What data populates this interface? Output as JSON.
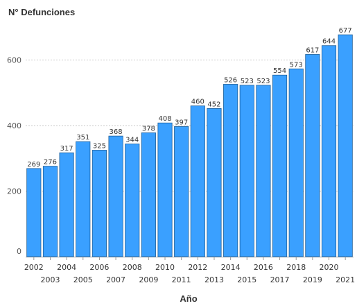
{
  "chart_data": {
    "type": "bar",
    "title": "N° Defunciones",
    "xlabel": "Año",
    "ylabel": "",
    "categories": [
      "2002",
      "2003",
      "2004",
      "2005",
      "2006",
      "2007",
      "2008",
      "2009",
      "2010",
      "2011",
      "2012",
      "2013",
      "2014",
      "2015",
      "2016",
      "2017",
      "2018",
      "2019",
      "2020",
      "2021"
    ],
    "values": [
      269,
      276,
      317,
      351,
      325,
      368,
      344,
      378,
      408,
      397,
      460,
      452,
      526,
      523,
      523,
      554,
      573,
      617,
      644,
      677
    ],
    "yticks": [
      0,
      200,
      400,
      600
    ],
    "ylim": [
      0,
      680
    ],
    "grid": true,
    "legend": "none",
    "bar_color": "#3aa0ff"
  }
}
